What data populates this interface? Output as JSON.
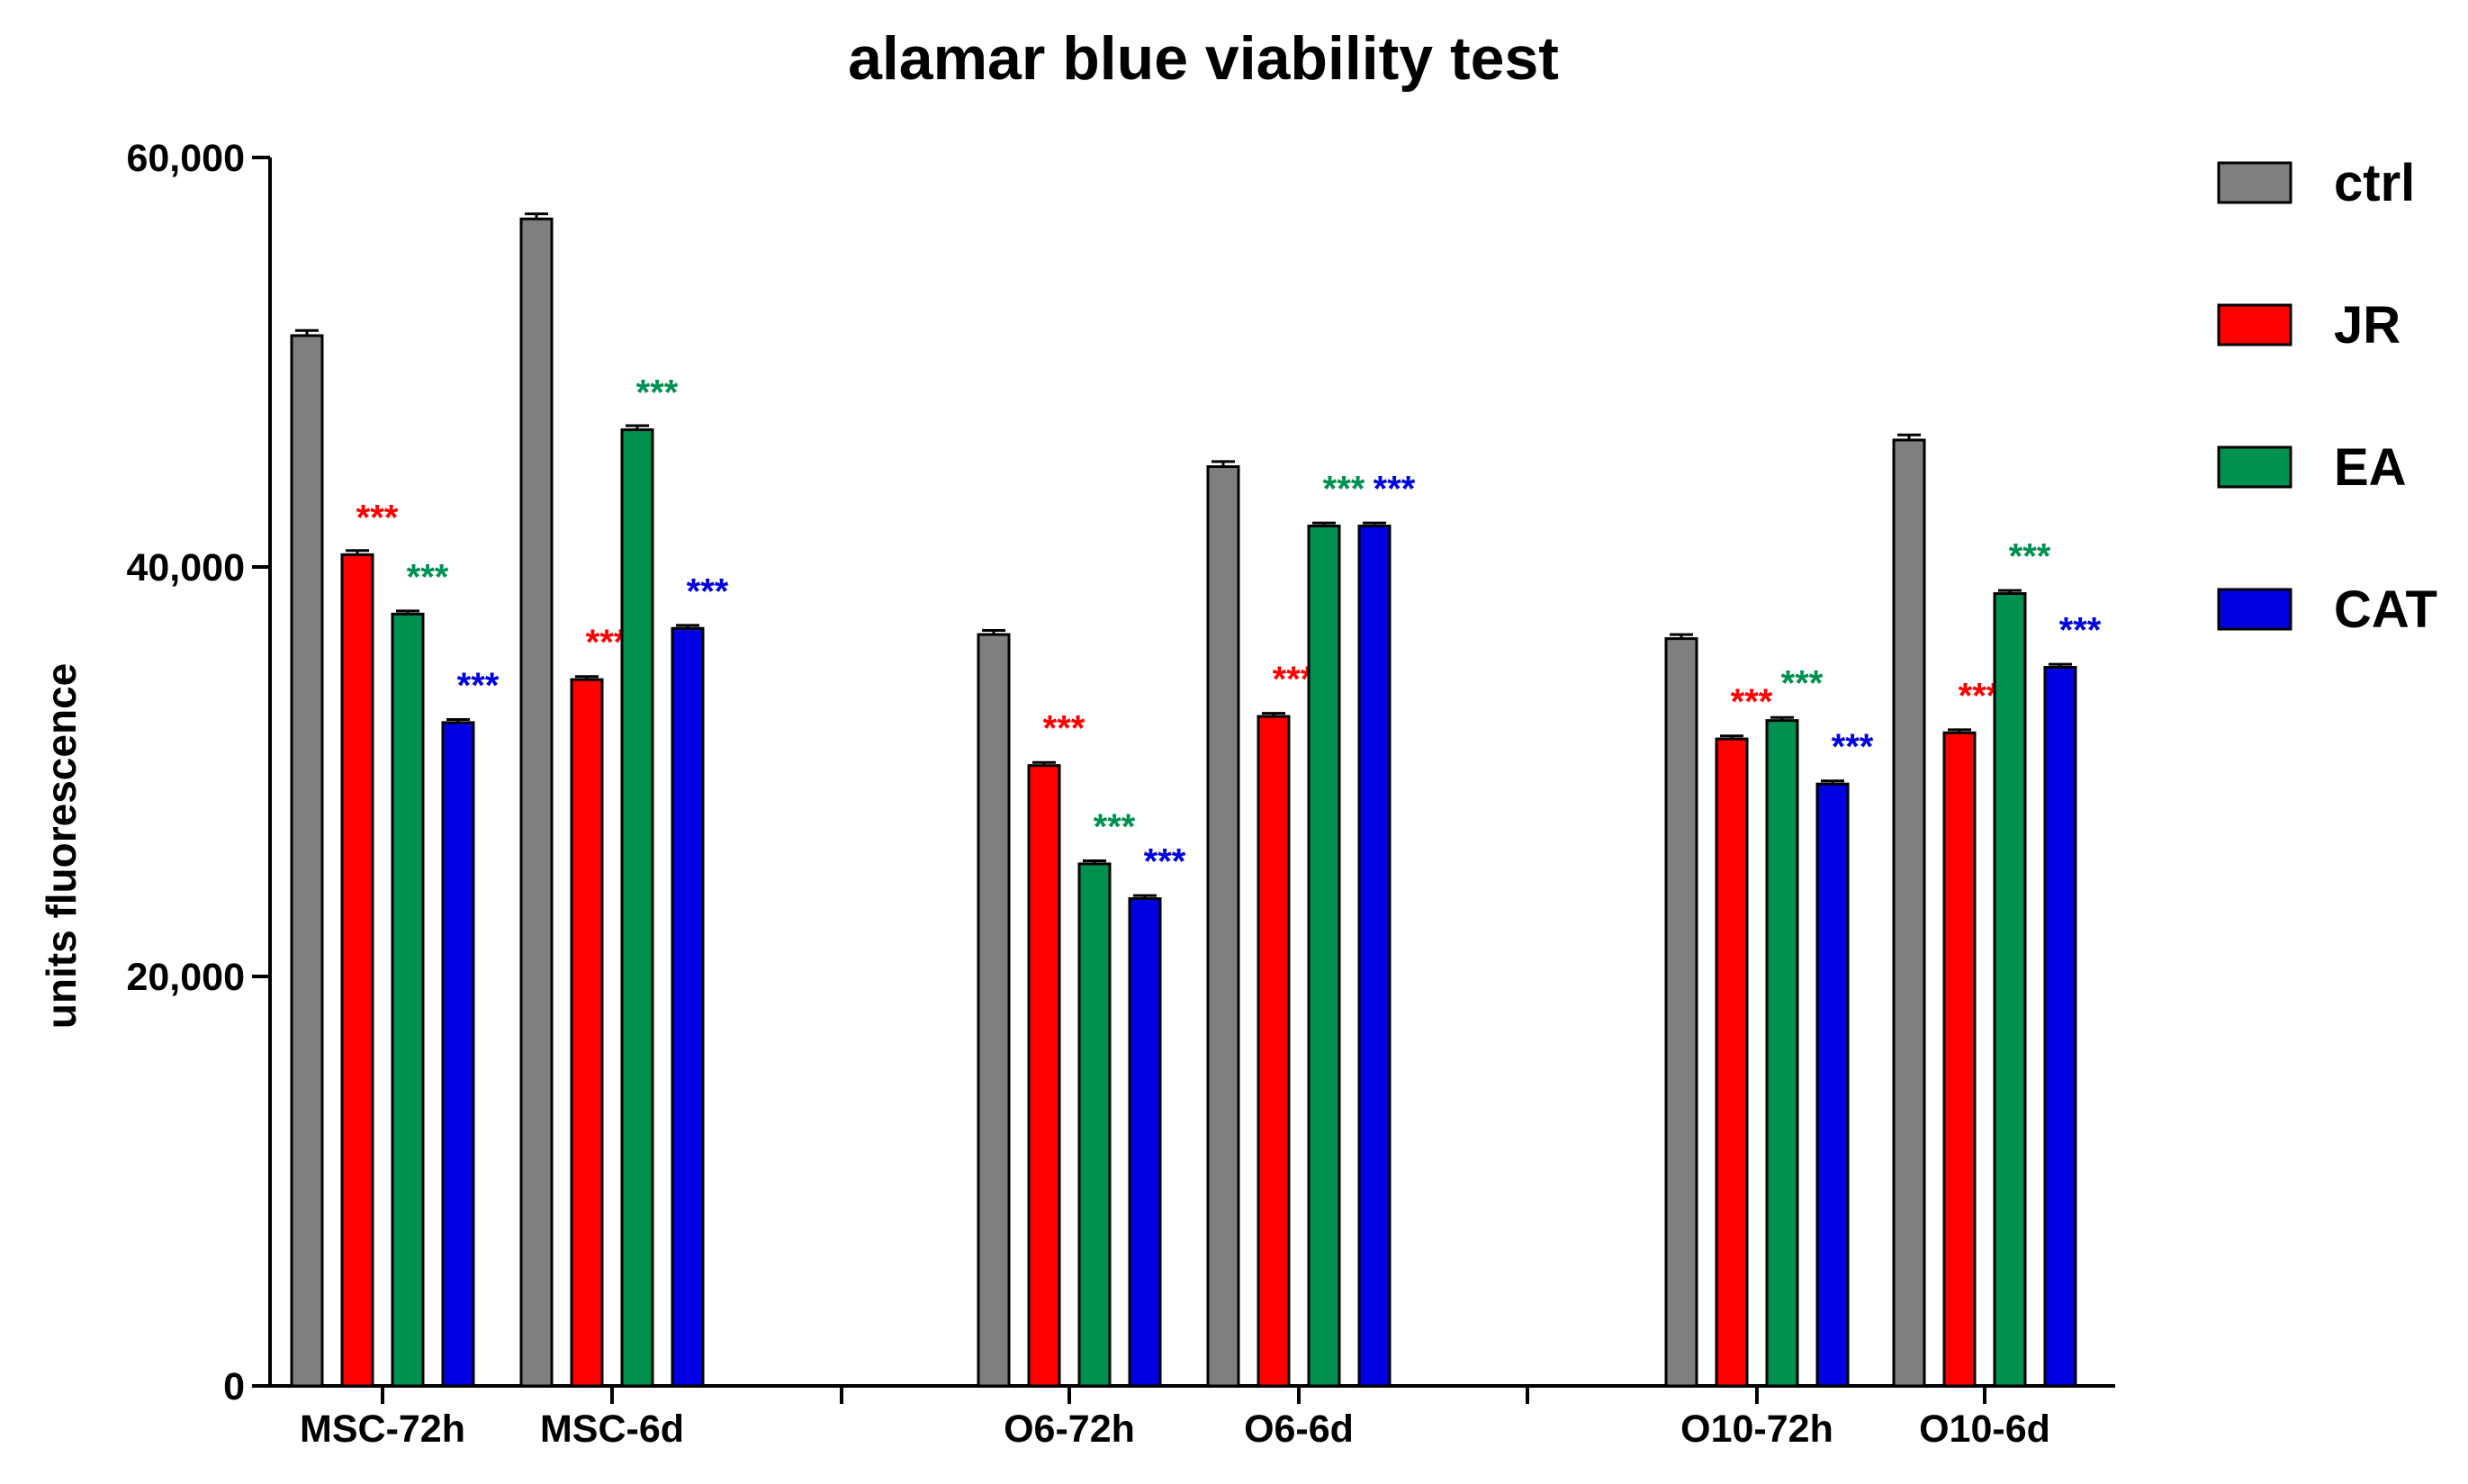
{
  "chart_data": {
    "type": "bar",
    "title": "alamar blue viability test",
    "xlabel": "",
    "ylabel": "units fluorescence",
    "ylim": [
      0,
      60000
    ],
    "yticks": [
      0,
      20000,
      40000,
      60000
    ],
    "ytick_labels": [
      "0",
      "20,000",
      "40,000",
      "60,000"
    ],
    "categories": [
      "MSC-72h",
      "MSC-6d",
      "O6-72h",
      "O6-6d",
      "O10-72h",
      "O10-6d"
    ],
    "series": [
      {
        "name": "ctrl",
        "color": "#7f7f7f",
        "values": [
          51300,
          57000,
          36700,
          44900,
          36500,
          46200
        ],
        "errors": [
          250,
          250,
          200,
          250,
          200,
          250
        ],
        "significance": [
          "",
          "",
          "",
          "",
          "",
          ""
        ]
      },
      {
        "name": "JR",
        "color": "#ff0000",
        "values": [
          40600,
          34500,
          30300,
          32700,
          31600,
          31900
        ],
        "errors": [
          200,
          150,
          150,
          150,
          150,
          150
        ],
        "significance": [
          "***",
          "***",
          "***",
          "***",
          "***",
          "***"
        ]
      },
      {
        "name": "EA",
        "color": "#009150",
        "values": [
          37700,
          46700,
          25500,
          42000,
          32500,
          38700
        ],
        "errors": [
          150,
          200,
          150,
          150,
          150,
          150
        ],
        "significance": [
          "***",
          "***",
          "***",
          "***",
          "***",
          "***"
        ]
      },
      {
        "name": "CAT",
        "color": "#0000e0",
        "values": [
          32400,
          37000,
          23800,
          42000,
          29400,
          35100
        ],
        "errors": [
          150,
          150,
          150,
          150,
          150,
          150
        ],
        "significance": [
          "***",
          "***",
          "***",
          "***",
          "***",
          "***"
        ]
      }
    ],
    "legend_position": "right",
    "grid": false
  }
}
